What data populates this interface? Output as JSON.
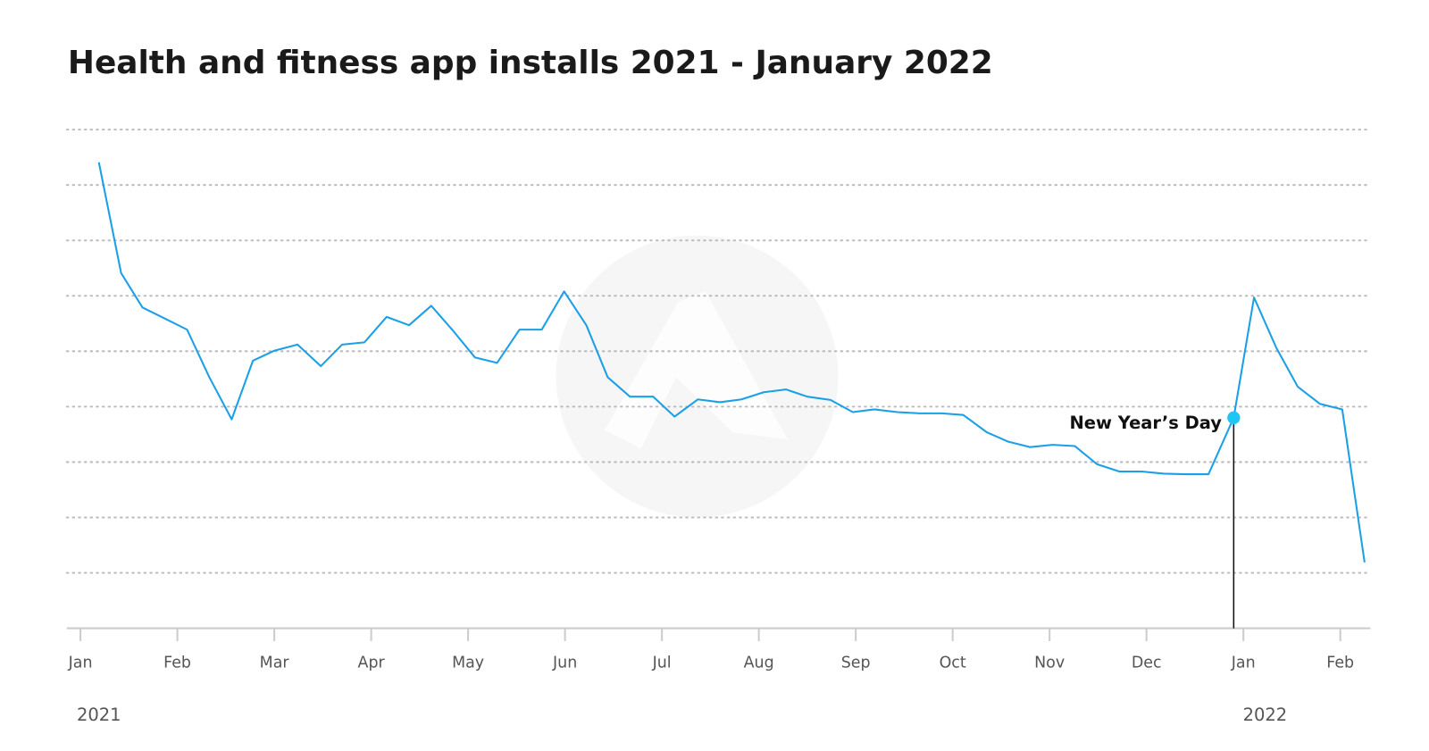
{
  "chart_data": {
    "type": "line",
    "title": "Health and fitness app installs 2021 - January 2022",
    "year_labels": [
      "2021",
      "2022"
    ],
    "annotation": "New Year’s Day",
    "color": "#1b9fe6",
    "marker_color": "#1ec6f5",
    "grid": true,
    "x": [
      0.19,
      0.42,
      0.64,
      0.87,
      1.1,
      1.33,
      1.56,
      1.78,
      2.0,
      2.24,
      2.48,
      2.7,
      2.93,
      3.16,
      3.39,
      3.62,
      3.85,
      4.07,
      4.3,
      4.53,
      4.76,
      4.99,
      5.22,
      5.44,
      5.67,
      5.91,
      6.13,
      6.37,
      6.6,
      6.82,
      7.05,
      7.28,
      7.5,
      7.74,
      7.97,
      8.19,
      8.43,
      8.66,
      8.89,
      9.11,
      9.35,
      9.57,
      9.8,
      10.03,
      10.26,
      10.49,
      10.72,
      10.95,
      11.18,
      11.41,
      11.64,
      11.9,
      12.11,
      12.34,
      12.56,
      12.79,
      13.02,
      13.25
    ],
    "values": [
      8.41,
      6.41,
      5.79,
      5.59,
      5.39,
      4.53,
      3.77,
      4.83,
      5.01,
      5.12,
      4.73,
      5.12,
      5.16,
      5.62,
      5.47,
      5.82,
      5.36,
      4.89,
      4.79,
      5.39,
      5.39,
      6.08,
      5.47,
      4.53,
      4.18,
      4.18,
      3.82,
      4.13,
      4.08,
      4.13,
      4.26,
      4.31,
      4.18,
      4.12,
      3.9,
      3.95,
      3.9,
      3.88,
      3.88,
      3.85,
      3.54,
      3.37,
      3.27,
      3.31,
      3.29,
      2.96,
      2.83,
      2.83,
      2.79,
      2.78,
      2.78,
      3.8,
      5.97,
      5.06,
      4.36,
      4.05,
      3.95,
      1.19
    ],
    "xlim": [
      -0.14,
      13.31
    ],
    "xticks": [
      {
        "value": 0,
        "label": "Jan"
      },
      {
        "value": 1,
        "label": "Feb"
      },
      {
        "value": 2,
        "label": "Mar"
      },
      {
        "value": 3,
        "label": "Apr"
      },
      {
        "value": 4,
        "label": "May"
      },
      {
        "value": 5,
        "label": "Jun"
      },
      {
        "value": 6,
        "label": "Jul"
      },
      {
        "value": 7,
        "label": "Aug"
      },
      {
        "value": 8,
        "label": "Sep"
      },
      {
        "value": 9,
        "label": "Oct"
      },
      {
        "value": 10,
        "label": "Nov"
      },
      {
        "value": 11,
        "label": "Dec"
      },
      {
        "value": 12,
        "label": "Jan"
      },
      {
        "value": 13,
        "label": "Feb"
      }
    ],
    "ylim": [
      0,
      9
    ],
    "yticks": [
      1,
      2,
      3,
      4,
      5,
      6,
      7,
      8,
      9
    ]
  }
}
